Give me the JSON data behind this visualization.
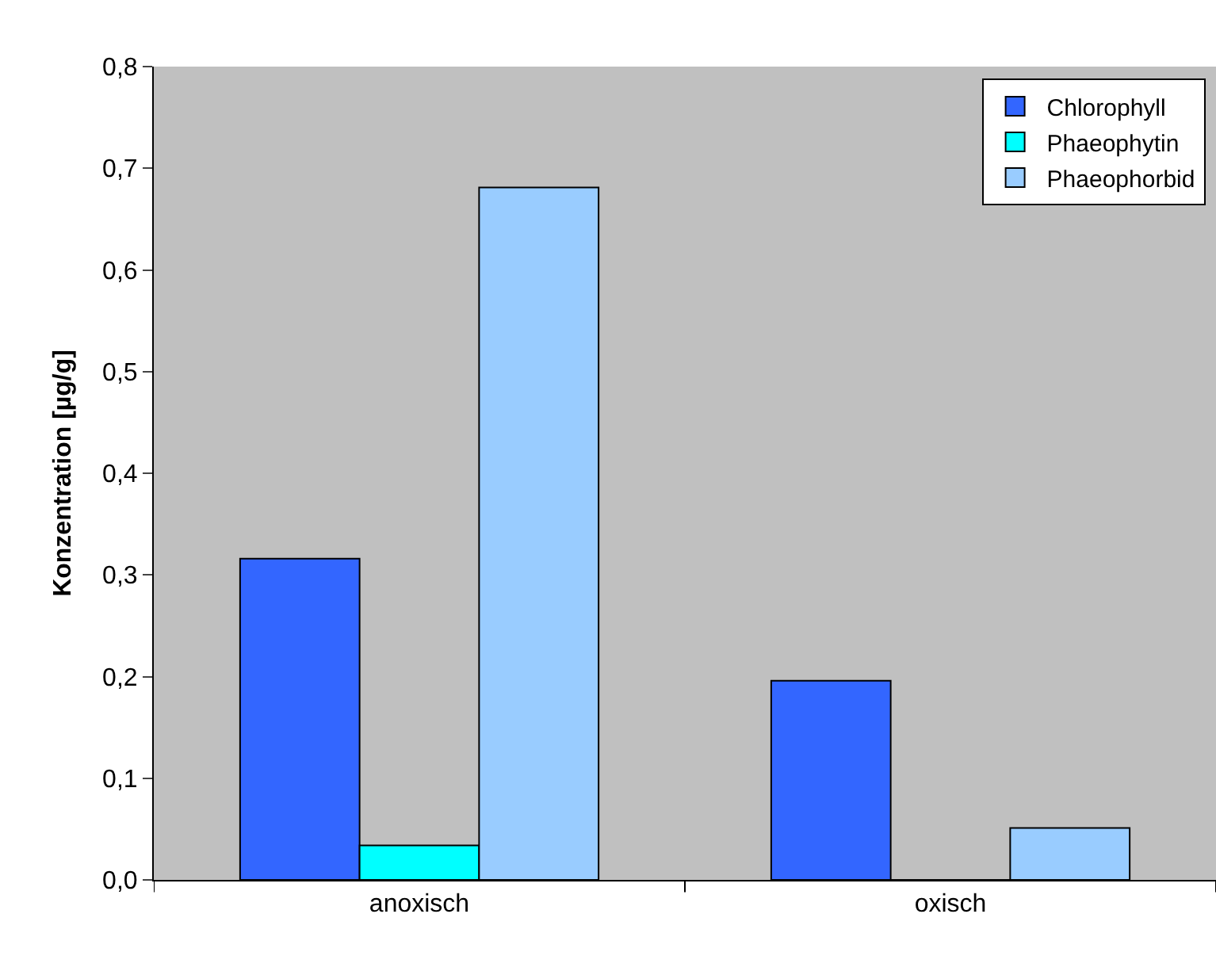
{
  "chart_data": {
    "type": "bar",
    "ylabel": "Konzentration [µg/g]",
    "categories": [
      "anoxisch",
      "oxisch"
    ],
    "series": [
      {
        "name": "Chlorophyll",
        "color": "#3366ff",
        "values": [
          0.316,
          0.196
        ]
      },
      {
        "name": "Phaeophytin",
        "color": "#00ffff",
        "values": [
          0.034,
          0
        ]
      },
      {
        "name": "Phaeophorbid",
        "color": "#99ccff",
        "values": [
          0.681,
          0.051
        ]
      }
    ],
    "ylim": [
      0,
      0.8
    ],
    "yticks": [
      {
        "value": 0,
        "label": "0,0"
      },
      {
        "value": 0.1,
        "label": "0,1"
      },
      {
        "value": 0.2,
        "label": "0,2"
      },
      {
        "value": 0.3,
        "label": "0,3"
      },
      {
        "value": 0.4,
        "label": "0,4"
      },
      {
        "value": 0.5,
        "label": "0,5"
      },
      {
        "value": 0.6,
        "label": "0,6"
      },
      {
        "value": 0.7,
        "label": "0,7"
      },
      {
        "value": 0.8,
        "label": "0,8"
      }
    ],
    "grid": false,
    "legend": "top right"
  }
}
